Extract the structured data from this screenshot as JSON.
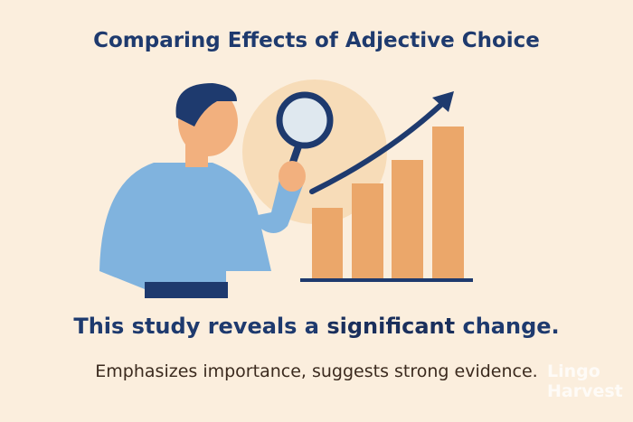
{
  "header": {
    "title": "Comparing Effects of Adjective Choice"
  },
  "sentence": {
    "before": "This study reveals a ",
    "emphasis": "significant",
    "after": " change."
  },
  "explanation": "Emphasizes importance, suggests strong evidence.",
  "watermark": [
    "Lingo",
    "Harvest"
  ]
}
